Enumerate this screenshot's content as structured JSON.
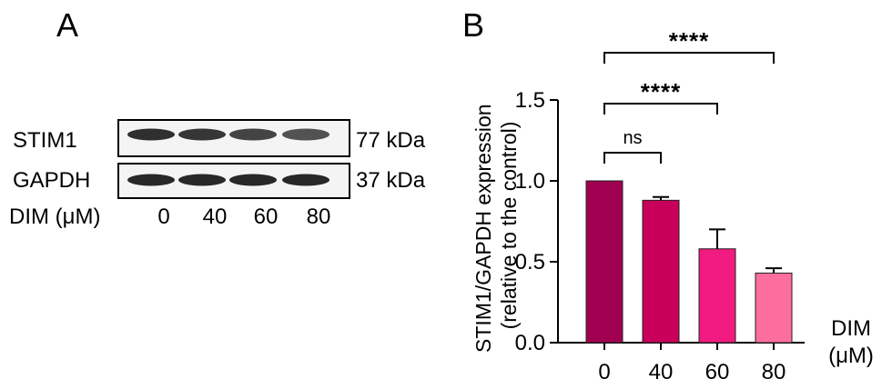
{
  "panel_a": {
    "letter": "A",
    "rows": [
      {
        "protein": "STIM1",
        "size": "77 kDa",
        "band_intensity": [
          0.95,
          0.9,
          0.8,
          0.7
        ]
      },
      {
        "protein": "GAPDH",
        "size": "37 kDa",
        "band_intensity": [
          1.0,
          1.0,
          1.0,
          1.0
        ]
      }
    ],
    "treatment_label": "DIM (μM)",
    "lanes": [
      "0",
      "40",
      "60",
      "80"
    ]
  },
  "panel_b": {
    "letter": "B"
  },
  "chart_data": {
    "type": "bar",
    "categories": [
      "0",
      "40",
      "60",
      "80"
    ],
    "values": [
      1.0,
      0.88,
      0.58,
      0.43
    ],
    "errors": [
      0.0,
      0.02,
      0.12,
      0.03
    ],
    "bar_colors": [
      "#a0004f",
      "#c8005a",
      "#f01a80",
      "#fb6e9d"
    ],
    "ylabel_lines": [
      "STIM1/GAPDH expression",
      "(relative to the control)"
    ],
    "xlabel_lines": [
      "DIM",
      "(μM)"
    ],
    "ylim": [
      0,
      1.5
    ],
    "yticks": [
      "0.0",
      "0.5",
      "1.0",
      "1.5"
    ],
    "ytick_values": [
      0,
      0.5,
      1.0,
      1.5
    ],
    "significance": [
      {
        "from": 0,
        "to": 1,
        "label": "ns"
      },
      {
        "from": 0,
        "to": 2,
        "label": "****"
      },
      {
        "from": 0,
        "to": 3,
        "label": "****"
      }
    ],
    "grid": false,
    "legend": "none"
  }
}
